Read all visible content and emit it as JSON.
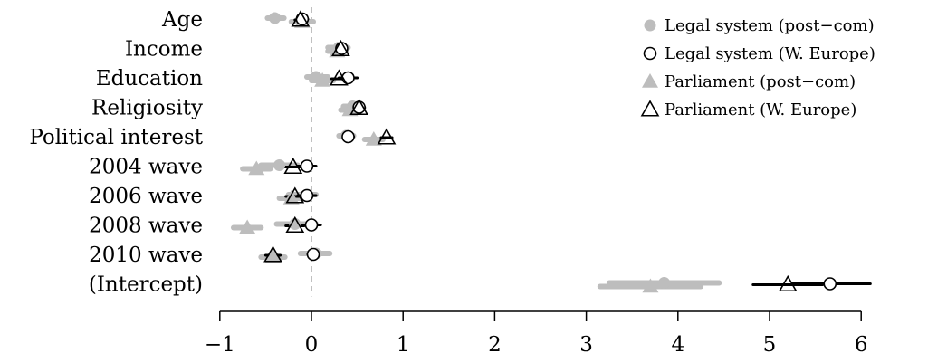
{
  "chart_data": {
    "type": "scatter",
    "subtype": "coefficient-plot",
    "title": "",
    "xlabel": "",
    "ylabel": "",
    "xlim": [
      -1,
      6
    ],
    "x_ticks": [
      -1,
      0,
      1,
      2,
      3,
      4,
      5,
      6
    ],
    "x_tick_labels": [
      "−1",
      "0",
      "1",
      "2",
      "3",
      "4",
      "5",
      "6"
    ],
    "reference_line_x": 0,
    "grid": false,
    "legend_position": "top-right",
    "categories": [
      "Age",
      "Income",
      "Education",
      "Religiosity",
      "Political interest",
      "2004 wave",
      "2006 wave",
      "2008 wave",
      "2010 wave",
      "(Intercept)"
    ],
    "colors": {
      "post_com": "#bdbdbd",
      "w_europe": "#000000",
      "zero_line": "#9e9e9e"
    },
    "series": [
      {
        "name": "Legal system (post−com)",
        "marker": "filled-circle",
        "color": "#bdbdbd",
        "estimates": [
          -0.4,
          0.3,
          0.05,
          0.45,
          0.38,
          -0.35,
          -0.05,
          -0.18,
          0.05,
          3.85
        ],
        "ci_low": [
          -0.48,
          0.18,
          -0.05,
          0.35,
          0.3,
          -0.55,
          -0.25,
          -0.38,
          -0.12,
          3.25
        ],
        "ci_high": [
          -0.3,
          0.4,
          0.18,
          0.55,
          0.46,
          -0.15,
          0.05,
          0.05,
          0.2,
          4.45
        ]
      },
      {
        "name": "Legal system (W. Europe)",
        "marker": "open-circle",
        "color": "#000000",
        "estimates": [
          -0.1,
          0.33,
          0.4,
          0.52,
          0.4,
          -0.05,
          -0.05,
          0.0,
          0.02,
          5.66
        ],
        "ci_low": [
          -0.16,
          0.28,
          0.3,
          0.46,
          0.34,
          -0.15,
          -0.15,
          -0.1,
          -0.04,
          5.25
        ],
        "ci_high": [
          -0.04,
          0.38,
          0.5,
          0.58,
          0.46,
          0.05,
          0.05,
          0.1,
          0.08,
          6.1
        ]
      },
      {
        "name": "Parliament (post−com)",
        "marker": "filled-triangle",
        "color": "#bdbdbd",
        "estimates": [
          -0.1,
          0.28,
          0.12,
          0.42,
          0.68,
          -0.6,
          -0.22,
          -0.7,
          -0.42,
          3.7
        ],
        "ci_low": [
          -0.22,
          0.18,
          0.0,
          0.32,
          0.58,
          -0.75,
          -0.35,
          -0.85,
          -0.55,
          3.15
        ],
        "ci_high": [
          0.02,
          0.38,
          0.24,
          0.52,
          0.78,
          -0.45,
          -0.09,
          -0.55,
          -0.29,
          4.25
        ]
      },
      {
        "name": "Parliament (W. Europe)",
        "marker": "open-triangle",
        "color": "#000000",
        "estimates": [
          -0.12,
          0.32,
          0.3,
          0.52,
          0.82,
          -0.2,
          -0.18,
          -0.18,
          -0.42,
          5.2
        ],
        "ci_low": [
          -0.18,
          0.26,
          0.22,
          0.46,
          0.76,
          -0.3,
          -0.28,
          -0.28,
          -0.5,
          4.82
        ],
        "ci_high": [
          -0.06,
          0.38,
          0.38,
          0.58,
          0.88,
          -0.1,
          -0.08,
          -0.08,
          -0.34,
          5.58
        ]
      }
    ]
  }
}
